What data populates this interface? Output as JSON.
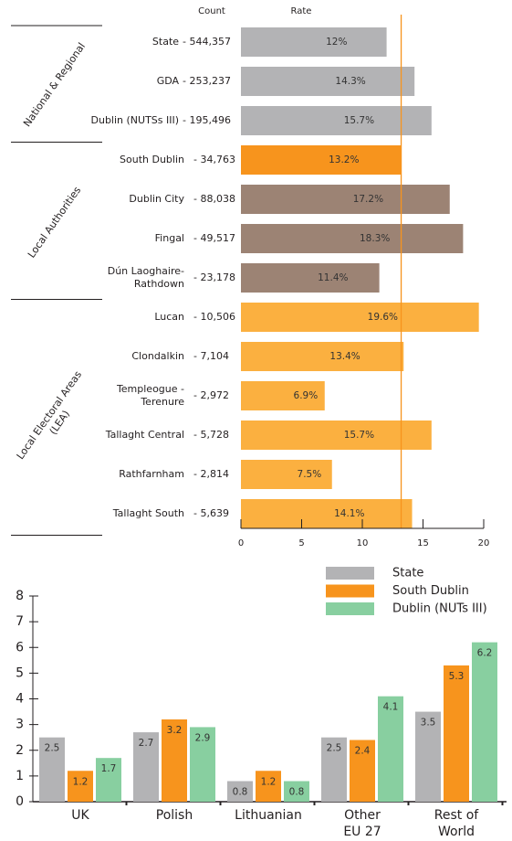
{
  "chart_data": [
    {
      "type": "hbar",
      "column_headers": [
        "Count",
        "Rate"
      ],
      "groups": [
        {
          "label": [
            "National & Regional"
          ],
          "first": 0,
          "last": 2
        },
        {
          "label": [
            "Local Authorities"
          ],
          "first": 3,
          "last": 6
        },
        {
          "label": [
            "Local Electoral Areas",
            "(LEA)"
          ],
          "first": 7,
          "last": 12
        }
      ],
      "categories": [
        [
          "State"
        ],
        [
          "GDA"
        ],
        [
          "Dublin (NUTSs III)"
        ],
        [
          "South Dublin"
        ],
        [
          "Dublin City"
        ],
        [
          "Fingal"
        ],
        [
          "Dún Laoghaire-",
          "Rathdown"
        ],
        [
          "Lucan"
        ],
        [
          "Clondalkin"
        ],
        [
          "Templeogue -",
          "Terenure"
        ],
        [
          "Tallaght Central"
        ],
        [
          "Rathfarnham"
        ],
        [
          "Tallaght South"
        ]
      ],
      "count_labels": [
        "- 544,357",
        "- 253,237",
        "- 195,496",
        "- 34,763",
        "- 88,038",
        "- 49,517",
        "- 23,178",
        "- 10,506",
        "- 7,104",
        "- 2,972",
        "- 5,728",
        "- 2,814",
        "- 5,639"
      ],
      "values": [
        12,
        14.3,
        15.7,
        13.2,
        17.2,
        18.3,
        11.4,
        19.6,
        13.4,
        6.9,
        15.7,
        7.5,
        14.1
      ],
      "value_labels": [
        "12%",
        "14.3%",
        "15.7%",
        "13.2%",
        "17.2%",
        "18.3%",
        "11.4%",
        "19.6%",
        "13.4%",
        "6.9%",
        "15.7%",
        "7.5%",
        "14.1%"
      ],
      "colors": [
        "#b3b3b5",
        "#b3b3b5",
        "#b3b3b5",
        "#f7941d",
        "#9c8374",
        "#9c8374",
        "#9c8374",
        "#fbb040",
        "#fbb040",
        "#fbb040",
        "#fbb040",
        "#fbb040",
        "#fbb040"
      ],
      "reference_line": {
        "value": 13.2,
        "color": "#f7941d"
      },
      "xlim": [
        0,
        20
      ],
      "xticks": [
        0,
        5,
        10,
        15,
        20
      ]
    },
    {
      "type": "bar",
      "categories": [
        [
          "UK"
        ],
        [
          "Polish"
        ],
        [
          "Lithuanian"
        ],
        [
          "Other",
          "EU 27"
        ],
        [
          "Rest of",
          "World"
        ]
      ],
      "series": [
        {
          "name": "State",
          "color": "#b3b3b5",
          "values": [
            2.5,
            2.7,
            0.8,
            2.5,
            3.5
          ]
        },
        {
          "name": "South Dublin",
          "color": "#f7941d",
          "values": [
            1.2,
            3.2,
            1.2,
            2.4,
            5.3
          ]
        },
        {
          "name": "Dublin (NUTs III)",
          "color": "#88cfa0",
          "values": [
            1.7,
            2.9,
            0.8,
            4.1,
            6.2
          ]
        }
      ],
      "ylim": [
        0,
        8
      ],
      "yticks": [
        0,
        1,
        2,
        3,
        4,
        5,
        6,
        7,
        8
      ],
      "legend": "top-right"
    }
  ]
}
